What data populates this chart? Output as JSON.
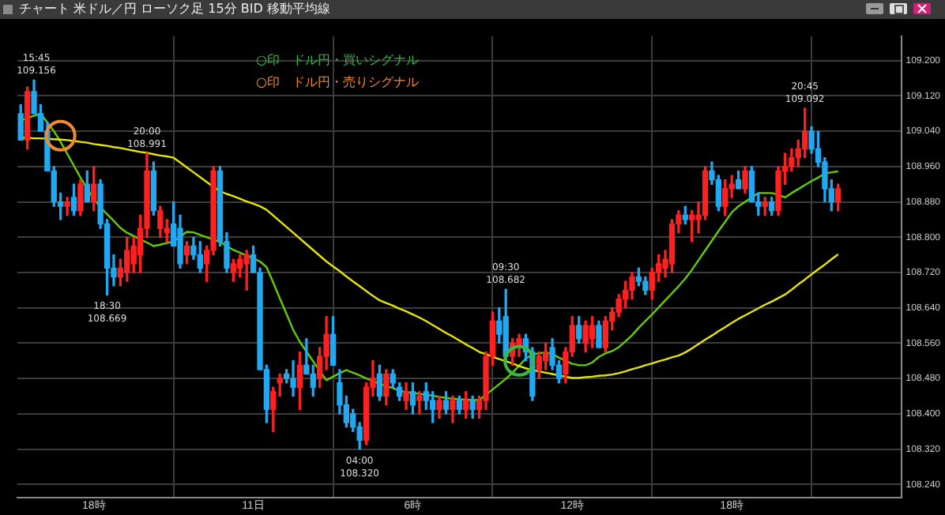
{
  "chart_data": {
    "type": "candlestick",
    "title": "チャート 米ドル／円 ローソク足 15分 BID 移動平均線",
    "categories": [
      null,
      null,
      null,
      null,
      null,
      null,
      null,
      null,
      null,
      null,
      null,
      "18時",
      null,
      null,
      null,
      null,
      null,
      null,
      null,
      null,
      null,
      null,
      null,
      null,
      null,
      null,
      null,
      null,
      null,
      null,
      null,
      null,
      null,
      null,
      null,
      "11日",
      null,
      null,
      null,
      null,
      null,
      null,
      null,
      null,
      null,
      null,
      null,
      null,
      null,
      null,
      null,
      null,
      null,
      null,
      null,
      null,
      null,
      null,
      null,
      "6時",
      null,
      null,
      null,
      null,
      null,
      null,
      null,
      null,
      null,
      null,
      null,
      null,
      null,
      null,
      null,
      null,
      null,
      null,
      null,
      null,
      null,
      null,
      null,
      "12時",
      null,
      null,
      null,
      null,
      null,
      null,
      null,
      null,
      null,
      null,
      null,
      null,
      null,
      null,
      null,
      null,
      null,
      null,
      null,
      null,
      null,
      null,
      null,
      "18時",
      null,
      null,
      null,
      null,
      null,
      null,
      null,
      null,
      null,
      null,
      null,
      null,
      null,
      null,
      null,
      null
    ],
    "ylim": [
      108.21,
      109.255
    ],
    "yticks": [
      {
        "value": 108.24,
        "label": "108.240"
      },
      {
        "value": 108.32,
        "label": "108.320"
      },
      {
        "value": 108.4,
        "label": "108.400"
      },
      {
        "value": 108.48,
        "label": "108.480"
      },
      {
        "value": 108.56,
        "label": "108.560"
      },
      {
        "value": 108.64,
        "label": "108.640"
      },
      {
        "value": 108.72,
        "label": "108.720"
      },
      {
        "value": 108.8,
        "label": "108.800"
      },
      {
        "value": 108.88,
        "label": "108.880"
      },
      {
        "value": 108.96,
        "label": "108.960"
      },
      {
        "value": 109.04,
        "label": "109.040"
      },
      {
        "value": 109.12,
        "label": "109.120"
      },
      {
        "value": 109.2,
        "label": "109.200"
      }
    ],
    "grid": true,
    "legend": "top",
    "series": [
      {
        "type": "line",
        "color": "#e6e600",
        "values": [
          109.025,
          109.025,
          109.024,
          109.024,
          109.023,
          109.022,
          109.021,
          109.02,
          109.018,
          109.016,
          109.014,
          109.011,
          109.009,
          109.007,
          109.004,
          109.002,
          108.999,
          108.996,
          108.993,
          108.991,
          108.988,
          108.985,
          108.983,
          108.98,
          108.969,
          108.958,
          108.947,
          108.936,
          108.925,
          108.914,
          108.904,
          108.898,
          108.893,
          108.887,
          108.881,
          108.876,
          108.87,
          108.862,
          108.849,
          108.836,
          108.823,
          108.81,
          108.797,
          108.784,
          108.771,
          108.758,
          108.745,
          108.734,
          108.723,
          108.711,
          108.7,
          108.689,
          108.678,
          108.667,
          108.657,
          108.651,
          108.645,
          108.638,
          108.632,
          108.625,
          108.618,
          108.61,
          108.601,
          108.592,
          108.583,
          108.575,
          108.566,
          108.557,
          108.549,
          108.54,
          108.535,
          108.529,
          108.524,
          108.519,
          108.514,
          108.508,
          108.503,
          108.499,
          108.496,
          108.493,
          108.49,
          108.487,
          108.484,
          108.481,
          108.481,
          108.483,
          108.484,
          108.486,
          108.487,
          108.489,
          108.492,
          108.496,
          108.501,
          108.505,
          108.51,
          108.514,
          108.519,
          108.523,
          108.528,
          108.532,
          108.539,
          108.548,
          108.558,
          108.568,
          108.577,
          108.587,
          108.596,
          108.606,
          108.615,
          108.623,
          108.631,
          108.639,
          108.647,
          108.654,
          108.662,
          108.67,
          108.681,
          108.693,
          108.704,
          108.716,
          108.727,
          108.738,
          108.75,
          108.761
        ]
      },
      {
        "type": "line",
        "color": "#66cc00",
        "values": [
          109.064,
          109.07,
          109.075,
          109.08,
          109.06,
          109.04,
          109.016,
          108.989,
          108.962,
          108.935,
          108.91,
          108.887,
          108.868,
          108.852,
          108.837,
          108.821,
          108.81,
          108.803,
          108.795,
          108.788,
          108.78,
          108.783,
          108.787,
          108.79,
          108.801,
          108.812,
          108.811,
          108.805,
          108.8,
          108.795,
          108.789,
          108.78,
          108.771,
          108.765,
          108.758,
          108.752,
          108.745,
          108.732,
          108.697,
          108.661,
          108.626,
          108.59,
          108.563,
          108.541,
          108.519,
          108.497,
          108.476,
          108.484,
          108.492,
          108.499,
          108.493,
          108.487,
          108.48,
          108.474,
          108.468,
          108.463,
          108.458,
          108.452,
          108.449,
          108.447,
          108.445,
          108.443,
          108.441,
          108.438,
          108.436,
          108.434,
          108.433,
          108.432,
          108.431,
          108.431,
          108.443,
          108.455,
          108.467,
          108.479,
          108.493,
          108.509,
          108.525,
          108.534,
          108.537,
          108.539,
          108.535,
          108.527,
          108.52,
          108.513,
          108.51,
          108.51,
          108.516,
          108.529,
          108.537,
          108.542,
          108.551,
          108.564,
          108.578,
          108.595,
          108.61,
          108.625,
          108.641,
          108.657,
          108.673,
          108.689,
          108.706,
          108.726,
          108.748,
          108.77,
          108.792,
          108.814,
          108.835,
          108.856,
          108.87,
          108.88,
          108.89,
          108.9,
          108.9,
          108.9,
          108.896,
          108.89,
          108.9,
          108.909,
          108.918,
          108.927,
          108.935,
          108.944,
          108.947,
          108.949
        ]
      },
      {
        "ohlc": [
          [
            109.08,
            109.1,
            109.02,
            109.02
          ],
          [
            109.02,
            109.14,
            109.0,
            109.13
          ],
          [
            109.13,
            109.156,
            109.08,
            109.08
          ],
          [
            109.08,
            109.1,
            109.04,
            109.04
          ],
          [
            109.04,
            109.06,
            108.95,
            108.95
          ],
          [
            108.95,
            108.96,
            108.87,
            108.88
          ],
          [
            108.88,
            108.9,
            108.84,
            108.87
          ],
          [
            108.87,
            108.89,
            108.85,
            108.88
          ],
          [
            108.89,
            108.92,
            108.85,
            108.86
          ],
          [
            108.86,
            108.93,
            108.85,
            108.92
          ],
          [
            108.92,
            108.95,
            108.88,
            108.88
          ],
          [
            108.88,
            108.96,
            108.86,
            108.92
          ],
          [
            108.92,
            108.93,
            108.82,
            108.83
          ],
          [
            108.83,
            108.84,
            108.669,
            108.73
          ],
          [
            108.73,
            108.76,
            108.69,
            108.71
          ],
          [
            108.71,
            108.75,
            108.69,
            108.73
          ],
          [
            108.72,
            108.8,
            108.7,
            108.77
          ],
          [
            108.74,
            108.8,
            108.72,
            108.78
          ],
          [
            108.76,
            108.85,
            108.72,
            108.82
          ],
          [
            108.82,
            108.991,
            108.8,
            108.95
          ],
          [
            108.95,
            108.97,
            108.85,
            108.86
          ],
          [
            108.82,
            108.87,
            108.8,
            108.86
          ],
          [
            108.81,
            108.84,
            108.79,
            108.82
          ],
          [
            108.83,
            108.88,
            108.78,
            108.78
          ],
          [
            108.82,
            108.85,
            108.73,
            108.74
          ],
          [
            108.76,
            108.79,
            108.74,
            108.78
          ],
          [
            108.78,
            108.8,
            108.75,
            108.76
          ],
          [
            108.76,
            108.79,
            108.72,
            108.73
          ],
          [
            108.74,
            108.78,
            108.7,
            108.77
          ],
          [
            108.77,
            108.96,
            108.76,
            108.95
          ],
          [
            108.95,
            108.96,
            108.78,
            108.79
          ],
          [
            108.79,
            108.81,
            108.72,
            108.73
          ],
          [
            108.72,
            108.75,
            108.7,
            108.74
          ],
          [
            108.73,
            108.76,
            108.71,
            108.75
          ],
          [
            108.74,
            108.77,
            108.68,
            108.76
          ],
          [
            108.76,
            108.78,
            108.72,
            108.72
          ],
          [
            108.72,
            108.73,
            108.5,
            108.5
          ],
          [
            108.5,
            108.51,
            108.38,
            108.41
          ],
          [
            108.41,
            108.46,
            108.36,
            108.45
          ],
          [
            108.47,
            108.49,
            108.44,
            108.48
          ],
          [
            108.49,
            108.5,
            108.47,
            108.48
          ],
          [
            108.48,
            108.52,
            108.44,
            108.46
          ],
          [
            108.46,
            108.54,
            108.41,
            108.51
          ],
          [
            108.51,
            108.57,
            108.49,
            108.49
          ],
          [
            108.49,
            108.51,
            108.44,
            108.46
          ],
          [
            108.48,
            108.55,
            108.46,
            108.53
          ],
          [
            108.53,
            108.62,
            108.5,
            108.58
          ],
          [
            108.58,
            108.62,
            108.51,
            108.51
          ],
          [
            108.47,
            108.5,
            108.4,
            108.42
          ],
          [
            108.42,
            108.44,
            108.37,
            108.38
          ],
          [
            108.4,
            108.41,
            108.36,
            108.37
          ],
          [
            108.37,
            108.38,
            108.32,
            108.34
          ],
          [
            108.34,
            108.47,
            108.33,
            108.46
          ],
          [
            108.46,
            108.52,
            108.44,
            108.48
          ],
          [
            108.49,
            108.51,
            108.43,
            108.44
          ],
          [
            108.44,
            108.5,
            108.42,
            108.49
          ],
          [
            108.49,
            108.5,
            108.46,
            108.47
          ],
          [
            108.46,
            108.47,
            108.43,
            108.44
          ],
          [
            108.43,
            108.47,
            108.41,
            108.45
          ],
          [
            108.45,
            108.47,
            108.4,
            108.42
          ],
          [
            108.43,
            108.45,
            108.4,
            108.44
          ],
          [
            108.45,
            108.47,
            108.41,
            108.43
          ],
          [
            108.43,
            108.45,
            108.38,
            108.41
          ],
          [
            108.41,
            108.44,
            108.39,
            108.43
          ],
          [
            108.43,
            108.45,
            108.4,
            108.41
          ],
          [
            108.41,
            108.44,
            108.38,
            108.43
          ],
          [
            108.43,
            108.44,
            108.4,
            108.41
          ],
          [
            108.41,
            108.45,
            108.39,
            108.43
          ],
          [
            108.43,
            108.44,
            108.39,
            108.41
          ],
          [
            108.41,
            108.44,
            108.39,
            108.43
          ],
          [
            108.43,
            108.54,
            108.41,
            108.53
          ],
          [
            108.53,
            108.63,
            108.51,
            108.61
          ],
          [
            108.61,
            108.64,
            108.56,
            108.58
          ],
          [
            108.62,
            108.682,
            108.52,
            108.53
          ],
          [
            108.53,
            108.57,
            108.51,
            108.56
          ],
          [
            108.55,
            108.58,
            108.53,
            108.57
          ],
          [
            108.57,
            108.58,
            108.52,
            108.54
          ],
          [
            108.54,
            108.55,
            108.43,
            108.44
          ],
          [
            108.5,
            108.54,
            108.48,
            108.53
          ],
          [
            108.52,
            108.56,
            108.5,
            108.54
          ],
          [
            108.55,
            108.57,
            108.5,
            108.51
          ],
          [
            108.51,
            108.52,
            108.47,
            108.48
          ],
          [
            108.49,
            108.55,
            108.47,
            108.54
          ],
          [
            108.54,
            108.62,
            108.53,
            108.6
          ],
          [
            108.6,
            108.62,
            108.56,
            108.57
          ],
          [
            108.56,
            108.61,
            108.54,
            108.6
          ],
          [
            108.57,
            108.62,
            108.55,
            108.6
          ],
          [
            108.6,
            108.61,
            108.55,
            108.55
          ],
          [
            108.55,
            108.62,
            108.54,
            108.61
          ],
          [
            108.61,
            108.64,
            108.59,
            108.63
          ],
          [
            108.63,
            108.67,
            108.62,
            108.66
          ],
          [
            108.66,
            108.7,
            108.64,
            108.68
          ],
          [
            108.68,
            108.72,
            108.66,
            108.71
          ],
          [
            108.71,
            108.73,
            108.69,
            108.7
          ],
          [
            108.7,
            108.71,
            108.67,
            108.68
          ],
          [
            108.68,
            108.73,
            108.66,
            108.72
          ],
          [
            108.72,
            108.76,
            108.7,
            108.74
          ],
          [
            108.73,
            108.77,
            108.71,
            108.75
          ],
          [
            108.74,
            108.84,
            108.72,
            108.83
          ],
          [
            108.83,
            108.86,
            108.81,
            108.85
          ],
          [
            108.85,
            108.87,
            108.83,
            108.84
          ],
          [
            108.84,
            108.86,
            108.79,
            108.85
          ],
          [
            108.84,
            108.88,
            108.81,
            108.85
          ],
          [
            108.85,
            108.96,
            108.84,
            108.95
          ],
          [
            108.95,
            108.97,
            108.92,
            108.93
          ],
          [
            108.93,
            108.94,
            108.86,
            108.87
          ],
          [
            108.87,
            108.93,
            108.85,
            108.91
          ],
          [
            108.91,
            108.94,
            108.89,
            108.92
          ],
          [
            108.93,
            108.95,
            108.91,
            108.91
          ],
          [
            108.91,
            108.96,
            108.9,
            108.95
          ],
          [
            108.95,
            108.96,
            108.88,
            108.88
          ],
          [
            108.88,
            108.9,
            108.85,
            108.87
          ],
          [
            108.87,
            108.89,
            108.85,
            108.88
          ],
          [
            108.88,
            108.89,
            108.85,
            108.86
          ],
          [
            108.86,
            108.96,
            108.85,
            108.95
          ],
          [
            108.95,
            108.99,
            108.92,
            108.96
          ],
          [
            108.96,
            109.0,
            108.95,
            108.98
          ],
          [
            108.98,
            109.02,
            108.96,
            109.0
          ],
          [
            109.0,
            109.092,
            108.98,
            109.04
          ],
          [
            109.04,
            109.05,
            108.99,
            109.0
          ],
          [
            109.0,
            109.04,
            108.96,
            108.97
          ],
          [
            108.97,
            108.98,
            108.88,
            108.91
          ],
          [
            108.91,
            108.93,
            108.86,
            108.88
          ],
          [
            108.88,
            108.92,
            108.86,
            108.91
          ]
        ],
        "colors": [
          "#20a8f0",
          "#ff2020",
          "#20a8f0",
          "#20a8f0",
          "#20a8f0",
          "#20a8f0",
          "#20a8f0",
          "#ff2020",
          "#20a8f0",
          "#ff2020",
          "#20a8f0",
          "#ff2020",
          "#20a8f0",
          "#20a8f0",
          "#20a8f0",
          "#ff2020",
          "#ff2020",
          "#ff2020",
          "#ff2020",
          "#ff2020",
          "#20a8f0",
          "#ff2020",
          "#ff2020",
          "#20a8f0",
          "#20a8f0",
          "#ff2020",
          "#20a8f0",
          "#20a8f0",
          "#ff2020",
          "#ff2020",
          "#20a8f0",
          "#20a8f0",
          "#ff2020",
          "#ff2020",
          "#ff2020",
          "#20a8f0",
          "#20a8f0",
          "#20a8f0",
          "#ff2020",
          "#ff2020",
          "#20a8f0",
          "#20a8f0",
          "#ff2020",
          "#20a8f0",
          "#20a8f0",
          "#ff2020",
          "#ff2020",
          "#20a8f0",
          "#20a8f0",
          "#20a8f0",
          "#20a8f0",
          "#20a8f0",
          "#ff2020",
          "#ff2020",
          "#20a8f0",
          "#ff2020",
          "#20a8f0",
          "#20a8f0",
          "#ff2020",
          "#20a8f0",
          "#ff2020",
          "#20a8f0",
          "#20a8f0",
          "#ff2020",
          "#20a8f0",
          "#ff2020",
          "#20a8f0",
          "#ff2020",
          "#20a8f0",
          "#ff2020",
          "#ff2020",
          "#ff2020",
          "#20a8f0",
          "#20a8f0",
          "#ff2020",
          "#ff2020",
          "#20a8f0",
          "#20a8f0",
          "#ff2020",
          "#ff2020",
          "#20a8f0",
          "#20a8f0",
          "#ff2020",
          "#ff2020",
          "#20a8f0",
          "#ff2020",
          "#ff2020",
          "#20a8f0",
          "#ff2020",
          "#ff2020",
          "#ff2020",
          "#ff2020",
          "#ff2020",
          "#20a8f0",
          "#20a8f0",
          "#ff2020",
          "#ff2020",
          "#ff2020",
          "#ff2020",
          "#ff2020",
          "#20a8f0",
          "#ff2020",
          "#ff2020",
          "#ff2020",
          "#20a8f0",
          "#20a8f0",
          "#ff2020",
          "#ff2020",
          "#20a8f0",
          "#ff2020",
          "#20a8f0",
          "#20a8f0",
          "#ff2020",
          "#20a8f0",
          "#ff2020",
          "#ff2020",
          "#ff2020",
          "#ff2020",
          "#ff2020",
          "#20a8f0",
          "#20a8f0",
          "#20a8f0",
          "#20a8f0",
          "#ff2020"
        ]
      },
      {
        "type": "scatter",
        "name": "○印　ドル円・買いシグナル",
        "color": "#33bb44",
        "marker": "circle",
        "values": [
          null,
          null,
          null,
          null,
          null,
          null,
          null,
          null,
          null,
          null,
          null,
          null,
          null,
          null,
          null,
          null,
          null,
          null,
          null,
          null,
          null,
          null,
          null,
          null,
          null,
          null,
          null,
          null,
          null,
          null,
          null,
          null,
          null,
          null,
          null,
          null,
          null,
          null,
          null,
          null,
          null,
          null,
          null,
          null,
          null,
          null,
          null,
          null,
          null,
          null,
          null,
          null,
          null,
          null,
          null,
          null,
          null,
          null,
          null,
          null,
          null,
          null,
          null,
          null,
          null,
          null,
          null,
          null,
          null,
          null,
          null,
          null,
          null,
          null,
          null,
          108.52,
          null,
          null,
          null,
          null,
          null,
          null,
          null,
          null,
          null,
          null,
          null,
          null,
          null,
          null,
          null,
          null,
          null,
          null,
          null,
          null,
          null,
          null,
          null,
          null,
          null,
          null,
          null,
          null,
          null,
          null,
          null,
          null,
          null,
          null,
          null,
          null,
          null,
          null,
          null,
          null,
          null,
          null,
          null,
          null,
          null,
          null,
          null,
          null
        ]
      },
      {
        "type": "scatter",
        "name": "○印　ドル円・売りシグナル",
        "color": "#f08a30",
        "marker": "circle",
        "values": [
          null,
          null,
          null,
          null,
          null,
          null,
          109.03,
          null,
          null,
          null,
          null,
          null,
          null,
          null,
          null,
          null,
          null,
          null,
          null,
          null,
          null,
          null,
          null,
          null,
          null,
          null,
          null,
          null,
          null,
          null,
          null,
          null,
          null,
          null,
          null,
          null,
          null,
          null,
          null,
          null,
          null,
          null,
          null,
          null,
          null,
          null,
          null,
          null,
          null,
          null,
          null,
          null,
          null,
          null,
          null,
          null,
          null,
          null,
          null,
          null,
          null,
          null,
          null,
          null,
          null,
          null,
          null,
          null,
          null,
          null,
          null,
          null,
          null,
          null,
          null,
          null,
          null,
          null,
          null,
          null,
          null,
          null,
          null,
          null,
          null,
          null,
          null,
          null,
          null,
          null,
          null,
          null,
          null,
          null,
          null,
          null,
          null,
          null,
          null,
          null,
          null,
          null,
          null,
          null,
          null,
          null,
          null,
          null,
          null,
          null,
          null,
          null,
          null,
          null,
          null,
          null,
          null,
          null,
          null,
          null,
          null,
          null,
          null,
          null
        ]
      }
    ],
    "annotations": [
      {
        "text": "15:45\n109.156",
        "y": 109.156
      },
      {
        "text": "20:00\n108.991",
        "y": 108.991
      },
      {
        "text": "18:30\n108.669",
        "y": 108.669
      },
      {
        "text": "04:00\n108.320",
        "y": 108.32
      },
      {
        "text": "09:30\n108.682",
        "y": 108.682
      },
      {
        "text": "20:45\n109.092",
        "y": 109.092
      }
    ]
  }
}
